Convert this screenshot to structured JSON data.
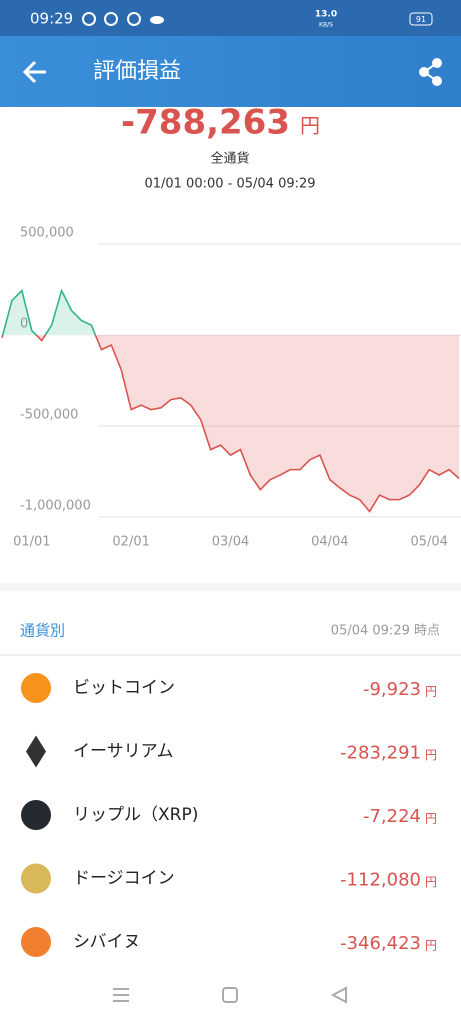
{
  "status_bar": {
    "time": "09:29",
    "speed": "13.0",
    "speed_unit": "KB/S",
    "battery": "91"
  },
  "header": {
    "title": "評価損益"
  },
  "summary": {
    "total": "-788,263",
    "unit": "円",
    "scope": "全通貨",
    "range": "01/01 00:00 - 05/04 09:29"
  },
  "chart_data": {
    "type": "area",
    "categories": [
      null,
      null,
      null,
      "01/01",
      null,
      null,
      null,
      null,
      null,
      null,
      null,
      null,
      null,
      "02/01",
      null,
      null,
      null,
      null,
      null,
      null,
      null,
      null,
      null,
      "03/04",
      null,
      null,
      null,
      null,
      null,
      null,
      null,
      null,
      null,
      "04/04",
      null,
      null,
      null,
      null,
      null,
      null,
      null,
      null,
      null,
      "05/04",
      null,
      null,
      null
    ],
    "values": [
      -15000,
      190000,
      245000,
      25000,
      -30000,
      55000,
      245000,
      135000,
      80000,
      55000,
      -80000,
      -55000,
      -190000,
      -410000,
      -385000,
      -410000,
      -400000,
      -355000,
      -345000,
      -385000,
      -465000,
      -630000,
      -605000,
      -660000,
      -630000,
      -770000,
      -850000,
      -795000,
      -770000,
      -740000,
      -740000,
      -685000,
      -660000,
      -795000,
      -840000,
      -880000,
      -905000,
      -970000,
      -880000,
      -905000,
      -905000,
      -880000,
      -825000,
      -740000,
      -770000,
      -740000,
      -788263
    ],
    "ylim": [
      -1050000,
      600000
    ],
    "yticks": [
      {
        "value": 500000,
        "label": "500,000"
      },
      0,
      {
        "value": -500000,
        "label": "-500,000"
      },
      {
        "value": -1000000,
        "label": "-1,000,000"
      }
    ],
    "grid": true,
    "positive_color": "#2fb58a",
    "negative_color": "#d9534f"
  },
  "list": {
    "title": "通貨別",
    "timestamp": "05/04 09:29 時点",
    "rows": [
      {
        "name": "ビットコイン",
        "value": "-9,923",
        "unit": "円"
      },
      {
        "name": "イーサリアム",
        "value": "-283,291",
        "unit": "円"
      },
      {
        "name": "リップル（XRP)",
        "value": "-7,224",
        "unit": "円"
      },
      {
        "name": "ドージコイン",
        "value": "-112,080",
        "unit": "円"
      },
      {
        "name": "シバイヌ",
        "value": "-346,423",
        "unit": "円"
      }
    ]
  }
}
